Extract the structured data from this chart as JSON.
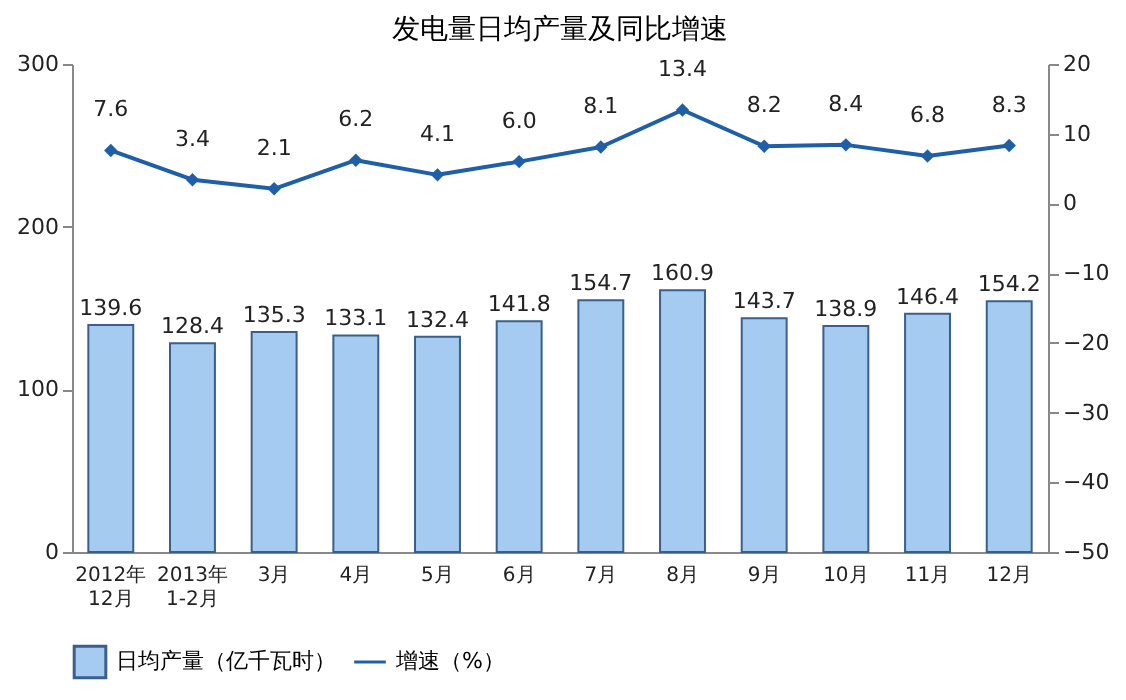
{
  "chart_data": {
    "type": "bar",
    "title": "发电量日均产量及同比增速",
    "categories": [
      "2012年\n12月",
      "2013年\n1-2月",
      "3月",
      "4月",
      "5月",
      "6月",
      "7月",
      "8月",
      "9月",
      "10月",
      "11月",
      "12月"
    ],
    "series": [
      {
        "name": "日均产量（亿千瓦时）",
        "color": "#a6cbf0",
        "values": [
          139.6,
          128.4,
          135.3,
          133.1,
          132.4,
          141.8,
          154.7,
          160.9,
          143.7,
          138.9,
          146.4,
          154.2
        ]
      },
      {
        "name": "增速（%）",
        "type": "line",
        "axis": "y2",
        "color": "#1f5fa8",
        "marker": "diamond",
        "values": [
          7.6,
          3.4,
          2.1,
          6.2,
          4.1,
          6.0,
          8.1,
          13.4,
          8.2,
          8.4,
          6.8,
          8.3
        ],
        "value_labels": [
          "7.6",
          "3.4",
          "2.1",
          "6.2",
          "4.1",
          "6.0",
          "8.1",
          "13.4",
          "8.2",
          "8.4",
          "6.8",
          "8.3"
        ]
      }
    ],
    "ylim": [
      0,
      300
    ],
    "yticks": [
      0,
      100,
      200,
      300
    ],
    "y2lim": [
      -50,
      20
    ],
    "y2ticks": [
      -50,
      -40,
      -30,
      -20,
      -10,
      0,
      10,
      20
    ],
    "data_labels": true,
    "grid": false,
    "legend": "bottom"
  }
}
